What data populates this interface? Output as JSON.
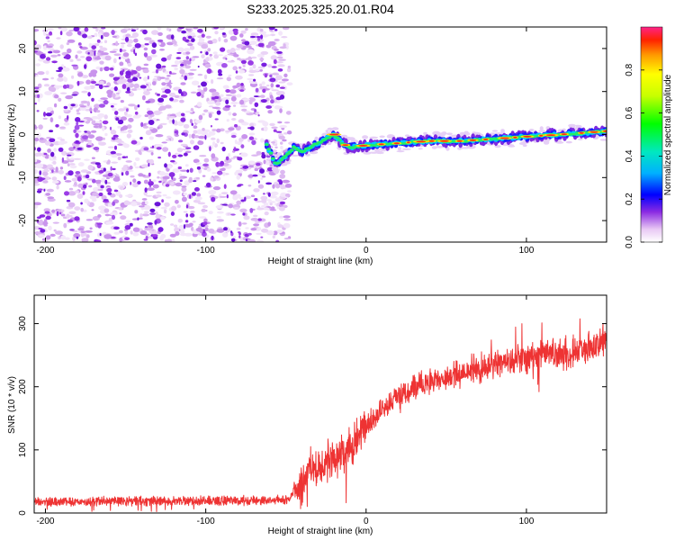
{
  "title": "S233.2025.325.20.01.R04",
  "chart_data": [
    {
      "type": "heatmap",
      "description": "spectrogram",
      "xlabel": "Height of straight line (km)",
      "ylabel": "Frequency (Hz)",
      "xlim": [
        -207,
        150
      ],
      "ylim": [
        -25,
        25
      ],
      "xticks": [
        -200,
        -100,
        0,
        100
      ],
      "yticks": [
        -20,
        -10,
        0,
        10,
        20
      ],
      "colorbar": {
        "label": "Normalized spectral amplitude",
        "range": [
          0,
          1
        ],
        "ticks": [
          "0.0",
          "0.2",
          "0.4",
          "0.6",
          "0.8"
        ]
      },
      "noise_region_x": [
        -207,
        -52
      ],
      "signal_track": [
        {
          "x": -62,
          "f": -2.5
        },
        {
          "x": -56,
          "f": -7
        },
        {
          "x": -50,
          "f": -5
        },
        {
          "x": -45,
          "f": -3
        },
        {
          "x": -40,
          "f": -4
        },
        {
          "x": -35,
          "f": -3
        },
        {
          "x": -30,
          "f": -2
        },
        {
          "x": -25,
          "f": -1
        },
        {
          "x": -20,
          "f": 0
        },
        {
          "x": -15,
          "f": -2
        },
        {
          "x": -10,
          "f": -3
        },
        {
          "x": 0,
          "f": -2.5
        },
        {
          "x": 20,
          "f": -2
        },
        {
          "x": 40,
          "f": -1.5
        },
        {
          "x": 60,
          "f": -1.5
        },
        {
          "x": 80,
          "f": -1
        },
        {
          "x": 100,
          "f": -0.5
        },
        {
          "x": 120,
          "f": 0
        },
        {
          "x": 140,
          "f": 0.5
        },
        {
          "x": 150,
          "f": 0.8
        }
      ]
    },
    {
      "type": "line",
      "xlabel": "Height of straight line (km)",
      "ylabel": "SNR (10 * v/v)",
      "xlim": [
        -207,
        150
      ],
      "ylim": [
        0,
        345
      ],
      "xticks": [
        -200,
        -100,
        0,
        100
      ],
      "yticks": [
        0,
        100,
        200,
        300
      ],
      "color": "#ee3333",
      "trend": [
        {
          "x": -207,
          "y": 18
        },
        {
          "x": -50,
          "y": 20
        },
        {
          "x": -42,
          "y": 40
        },
        {
          "x": -35,
          "y": 70
        },
        {
          "x": -20,
          "y": 85
        },
        {
          "x": -10,
          "y": 105
        },
        {
          "x": 0,
          "y": 140
        },
        {
          "x": 10,
          "y": 165
        },
        {
          "x": 20,
          "y": 185
        },
        {
          "x": 30,
          "y": 200
        },
        {
          "x": 50,
          "y": 215
        },
        {
          "x": 70,
          "y": 230
        },
        {
          "x": 90,
          "y": 240
        },
        {
          "x": 110,
          "y": 250
        },
        {
          "x": 130,
          "y": 255
        },
        {
          "x": 150,
          "y": 270
        }
      ]
    }
  ]
}
